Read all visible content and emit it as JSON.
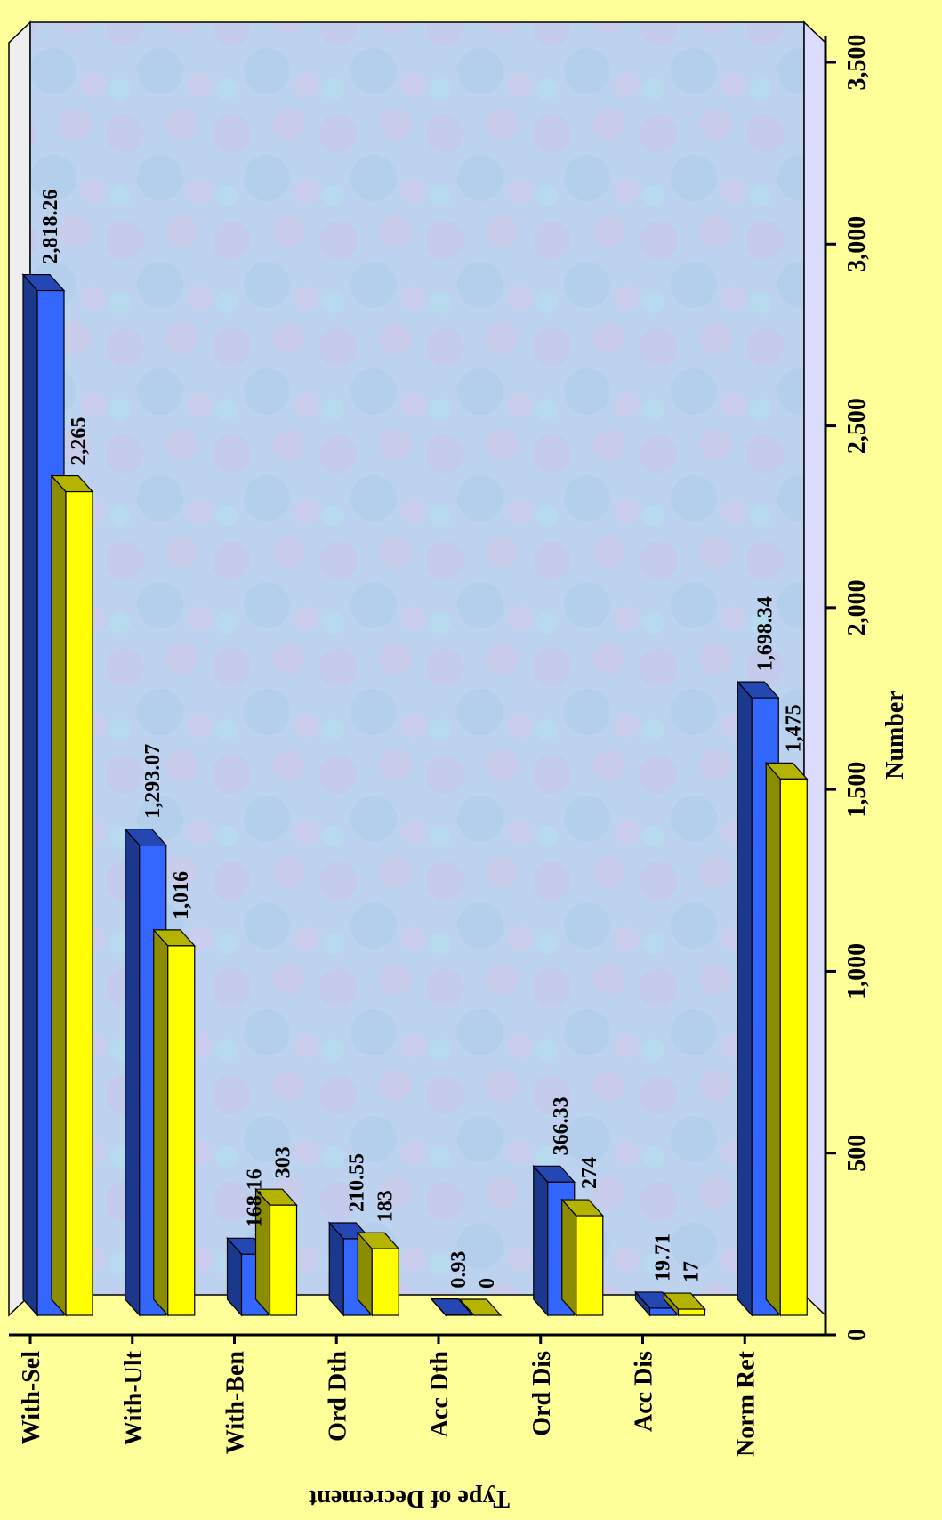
{
  "chart_data": {
    "type": "bar",
    "orientation": "horizontal",
    "three_d": true,
    "title": "",
    "xlabel": "Number",
    "ylabel": "Type of Decrement",
    "categories": [
      "With-Sel",
      "With-Ult",
      "With-Ben",
      "Ord Dth",
      "Acc Dth",
      "Ord Dis",
      "Acc Dis",
      "Norm Ret"
    ],
    "xlim": [
      0,
      3500
    ],
    "x_ticks": [
      0,
      500,
      1000,
      1500,
      2000,
      2500,
      3000,
      3500
    ],
    "x_tick_labels": [
      "0",
      "500",
      "1,000",
      "1,500",
      "2,000",
      "2,500",
      "3,000",
      "3,500"
    ],
    "series": [
      {
        "color": "#3366ff",
        "values": [
          2818.26,
          1293.07,
          168.16,
          210.55,
          0.93,
          366.33,
          19.71,
          1698.34
        ],
        "value_labels": [
          "2,818.26",
          "1,293.07",
          "168.16",
          "210.55",
          "0.93",
          "366.33",
          "19.71",
          "1,698.34"
        ]
      },
      {
        "color": "#ffff00",
        "values": [
          2265,
          1016,
          303,
          183,
          0,
          274,
          17,
          1475
        ],
        "value_labels": [
          "2,265",
          "1,016",
          "303",
          "183",
          "0",
          "274",
          "17",
          "1,475"
        ]
      }
    ],
    "legend": "none",
    "grid": false
  }
}
